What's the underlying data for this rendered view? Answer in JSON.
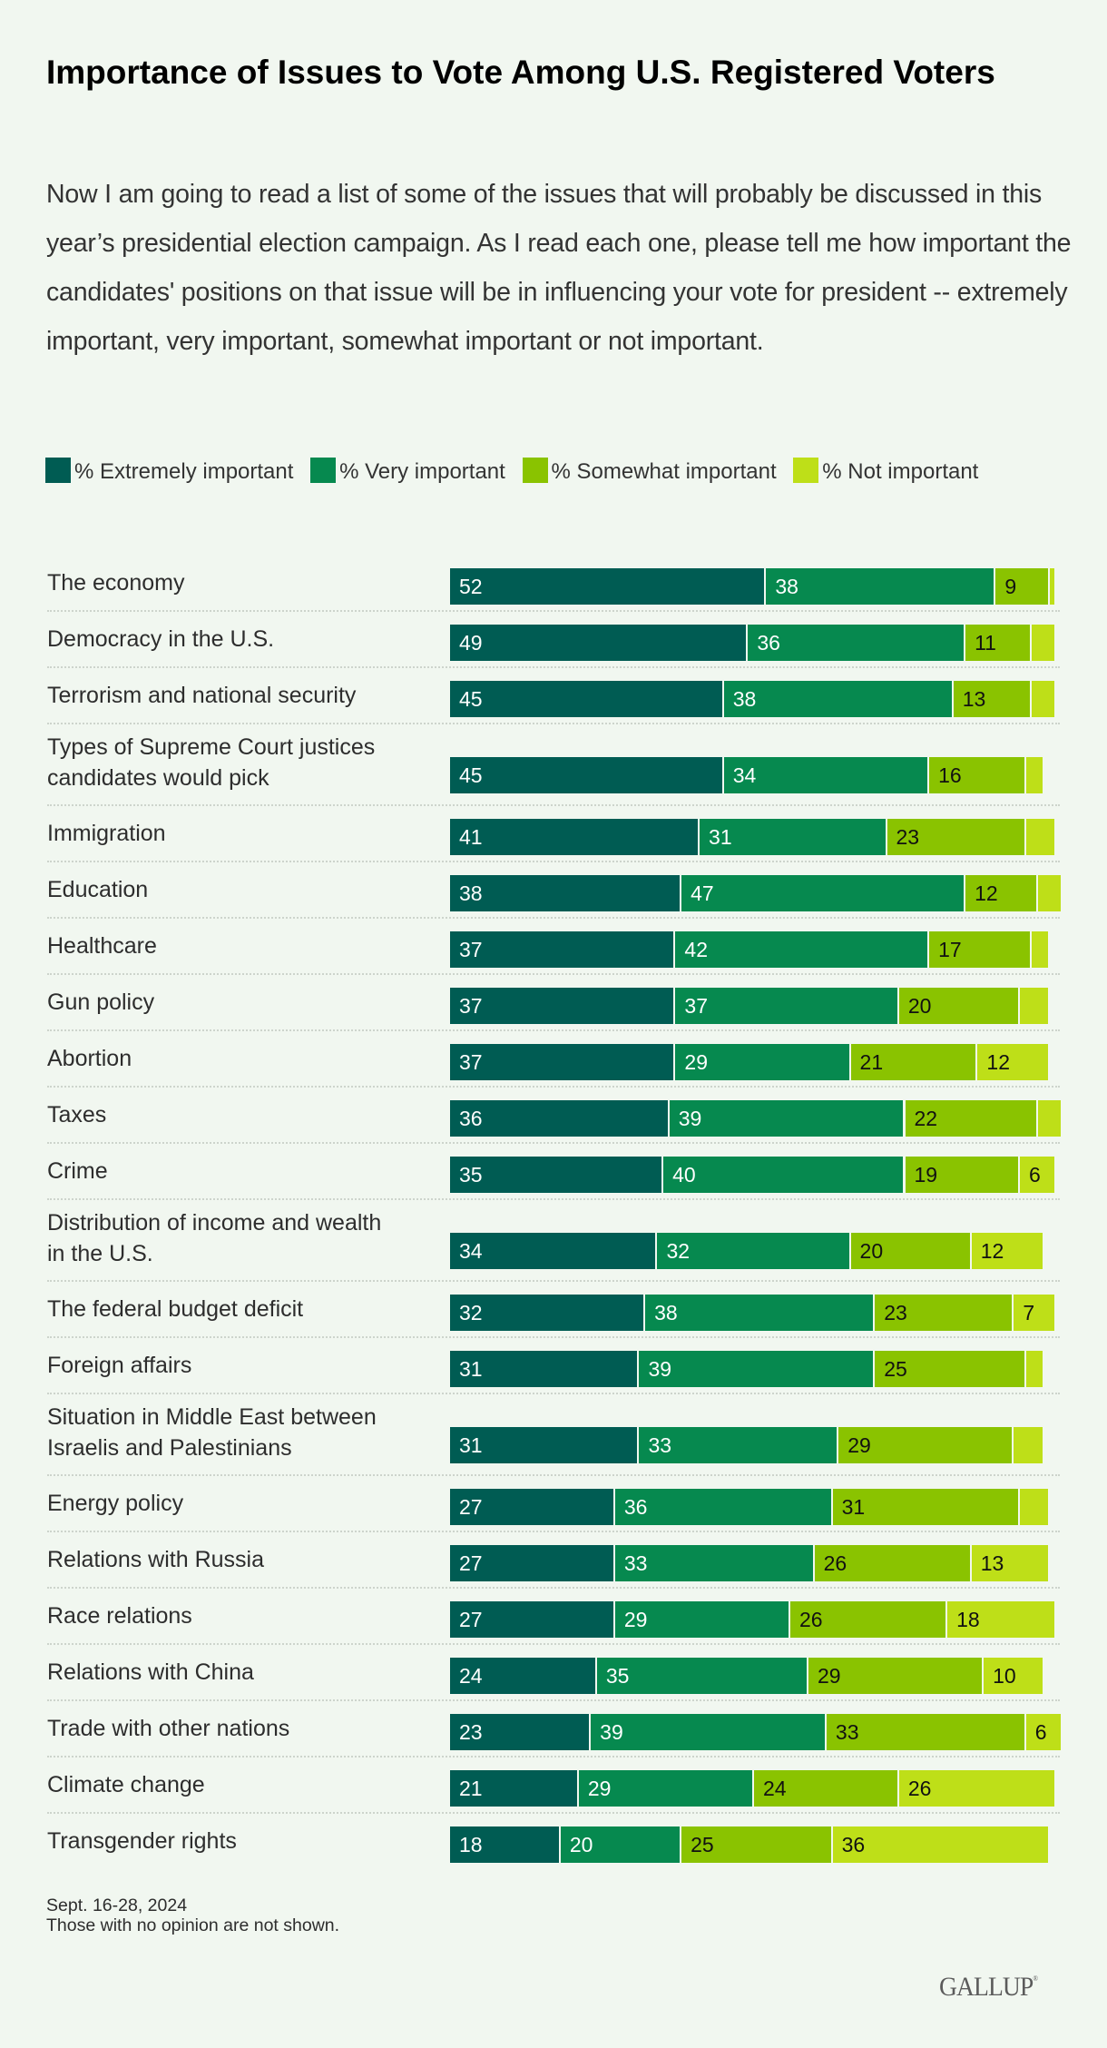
{
  "title": "Importance of Issues to Vote Among U.S. Registered Voters",
  "subtitle": "Now I am going to read a list of some of the issues that will probably be discussed in this year’s presidential election campaign. As I read each one, please tell me how important the candidates' positions on that issue will be in influencing your vote for president -- extremely important, very important, somewhat important or not important.",
  "legend": [
    {
      "label": "% Extremely important",
      "color": "#005C53"
    },
    {
      "label": "% Very important",
      "color": "#06894F"
    },
    {
      "label": "% Somewhat important",
      "color": "#8AC300"
    },
    {
      "label": "% Not important",
      "color": "#BEDF18"
    }
  ],
  "footer": {
    "dates": "Sept. 16-28, 2024",
    "note": "Those with no opinion are not shown."
  },
  "logo": "GALLUP",
  "chart_data": {
    "type": "bar",
    "orientation": "horizontal",
    "stacked": true,
    "title": "Importance of Issues to Vote Among U.S. Registered Voters",
    "xlabel": "",
    "ylabel": "",
    "xlim": [
      0,
      100
    ],
    "grid": false,
    "legend_position": "top-left",
    "categories": [
      "The economy",
      "Democracy in the U.S.",
      "Terrorism and national security",
      "Types of Supreme Court justices candidates would pick",
      "Immigration",
      "Education",
      "Healthcare",
      "Gun policy",
      "Abortion",
      "Taxes",
      "Crime",
      "Distribution of income and wealth in the U.S.",
      "The federal budget deficit",
      "Foreign affairs",
      "Situation in Middle East between Israelis and Palestinians",
      "Energy policy",
      "Relations with Russia",
      "Race relations",
      "Relations with China",
      "Trade with other nations",
      "Climate change",
      "Transgender rights"
    ],
    "category_lines": [
      [
        "The economy"
      ],
      [
        "Democracy in the U.S."
      ],
      [
        "Terrorism and national security"
      ],
      [
        "Types of Supreme Court justices",
        "candidates would pick"
      ],
      [
        "Immigration"
      ],
      [
        "Education"
      ],
      [
        "Healthcare"
      ],
      [
        "Gun policy"
      ],
      [
        "Abortion"
      ],
      [
        "Taxes"
      ],
      [
        "Crime"
      ],
      [
        "Distribution of income and wealth",
        "in the U.S."
      ],
      [
        "The federal budget deficit"
      ],
      [
        "Foreign affairs"
      ],
      [
        "Situation in Middle East between",
        "Israelis and Palestinians"
      ],
      [
        "Energy policy"
      ],
      [
        "Relations with Russia"
      ],
      [
        "Race relations"
      ],
      [
        "Relations with China"
      ],
      [
        "Trade with other nations"
      ],
      [
        "Climate change"
      ],
      [
        "Transgender rights"
      ]
    ],
    "series": [
      {
        "name": "% Extremely important",
        "color": "#005C53",
        "label_color": "#FFFFFF",
        "values": [
          52,
          49,
          45,
          45,
          41,
          38,
          37,
          37,
          37,
          36,
          35,
          34,
          32,
          31,
          31,
          27,
          27,
          27,
          24,
          23,
          21,
          18
        ],
        "labels_shown": [
          true,
          true,
          true,
          true,
          true,
          true,
          true,
          true,
          true,
          true,
          true,
          true,
          true,
          true,
          true,
          true,
          true,
          true,
          true,
          true,
          true,
          true
        ]
      },
      {
        "name": "% Very important",
        "color": "#06894F",
        "label_color": "#FFFFFF",
        "values": [
          38,
          36,
          38,
          34,
          31,
          47,
          42,
          37,
          29,
          39,
          40,
          32,
          38,
          39,
          33,
          36,
          33,
          29,
          35,
          39,
          29,
          20
        ],
        "labels_shown": [
          true,
          true,
          true,
          true,
          true,
          true,
          true,
          true,
          true,
          true,
          true,
          true,
          true,
          true,
          true,
          true,
          true,
          true,
          true,
          true,
          true,
          true
        ]
      },
      {
        "name": "% Somewhat important",
        "color": "#8AC300",
        "label_color": "#111111",
        "values": [
          9,
          11,
          13,
          16,
          23,
          12,
          17,
          20,
          21,
          22,
          19,
          20,
          23,
          25,
          29,
          31,
          26,
          26,
          29,
          33,
          24,
          25
        ],
        "labels_shown": [
          true,
          true,
          true,
          true,
          true,
          true,
          true,
          true,
          true,
          true,
          true,
          true,
          true,
          true,
          true,
          true,
          true,
          true,
          true,
          true,
          true,
          true
        ]
      },
      {
        "name": "% Not important",
        "color": "#BEDF18",
        "label_color": "#111111",
        "values": [
          1,
          4,
          4,
          3,
          5,
          4,
          3,
          5,
          12,
          4,
          6,
          12,
          7,
          3,
          5,
          5,
          13,
          18,
          10,
          6,
          26,
          36
        ],
        "labels_shown": [
          false,
          false,
          false,
          false,
          false,
          false,
          false,
          false,
          true,
          false,
          true,
          true,
          true,
          false,
          false,
          false,
          true,
          true,
          true,
          true,
          true,
          true
        ]
      }
    ],
    "annotations": [
      "Sept. 16-28, 2024",
      "Those with no opinion are not shown."
    ]
  }
}
